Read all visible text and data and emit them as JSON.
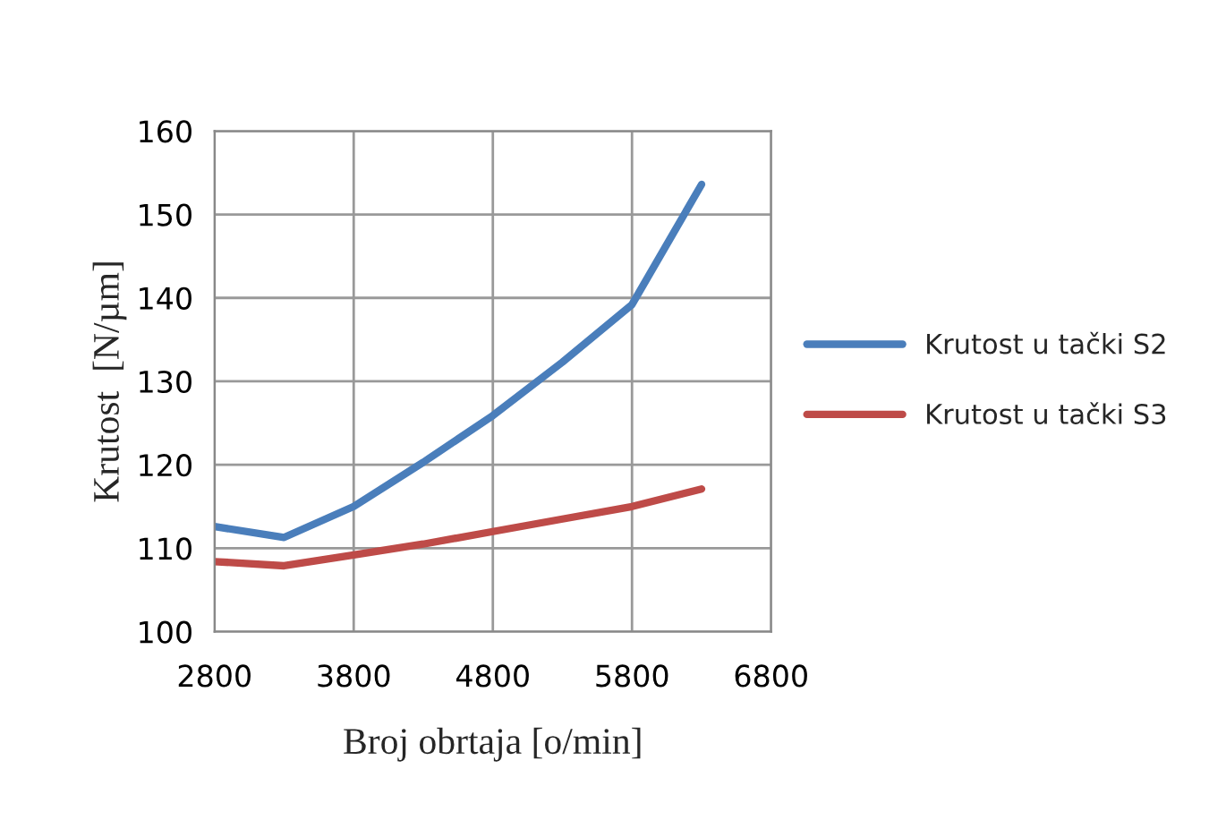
{
  "chart_data": {
    "type": "line",
    "xlabel": "Broj obrtaja [o/min]",
    "ylabel": "Krutost  [N/µm]",
    "x": [
      2800,
      3300,
      3800,
      4300,
      4800,
      5300,
      5800,
      6300
    ],
    "series": [
      {
        "name": "Krutost u tački S2",
        "color": "#4a7ebb",
        "values": [
          112.6,
          111.3,
          115.0,
          120.3,
          125.9,
          132.3,
          139.2,
          153.6
        ]
      },
      {
        "name": "Krutost u tački S3",
        "color": "#be4b48",
        "values": [
          108.4,
          107.9,
          109.2,
          110.5,
          112.0,
          113.5,
          115.0,
          117.1
        ]
      }
    ],
    "xlim": [
      2800,
      6800
    ],
    "xticks": [
      2800,
      3800,
      4800,
      5800,
      6800
    ],
    "ylim": [
      100,
      160
    ],
    "yticks": [
      100,
      110,
      120,
      130,
      140,
      150,
      160
    ],
    "grid": true,
    "legend": "right",
    "marker": "none",
    "line_style": "solid"
  }
}
